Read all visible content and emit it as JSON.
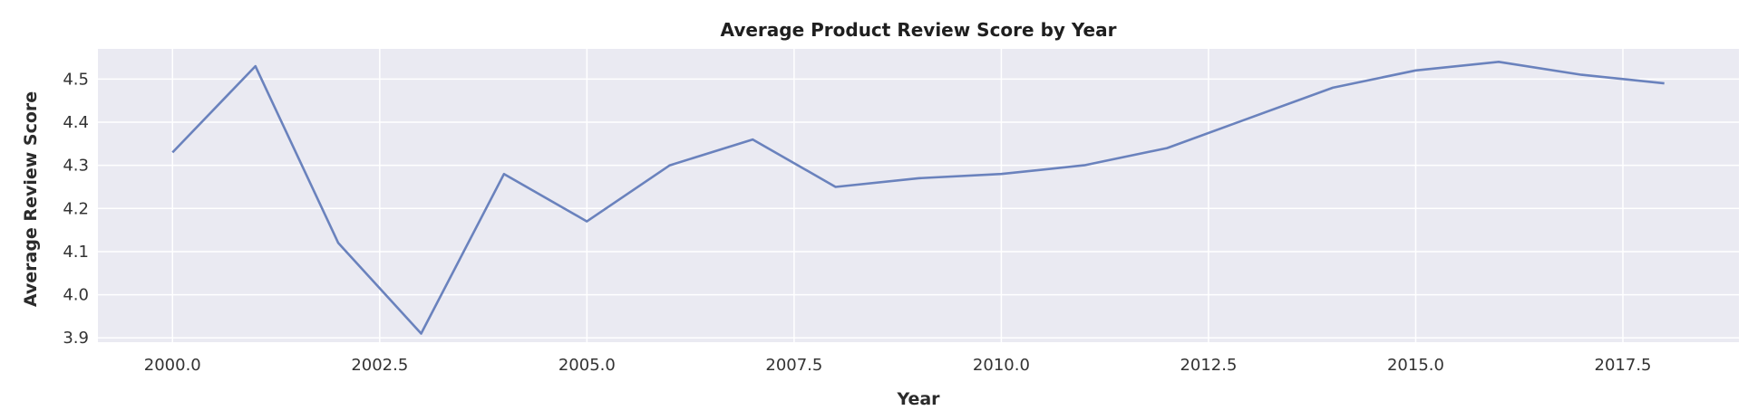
{
  "chart_data": {
    "type": "line",
    "title": "Average Product Review Score by Year",
    "xlabel": "Year",
    "ylabel": "Average Review Score",
    "xlim": [
      1999.1,
      2018.9
    ],
    "ylim": [
      3.89,
      4.57
    ],
    "xticks": [
      2000.0,
      2002.5,
      2005.0,
      2007.5,
      2010.0,
      2012.5,
      2015.0,
      2017.5
    ],
    "xtick_labels": [
      "2000.0",
      "2002.5",
      "2005.0",
      "2007.5",
      "2010.0",
      "2012.5",
      "2015.0",
      "2017.5"
    ],
    "yticks": [
      3.9,
      4.0,
      4.1,
      4.2,
      4.3,
      4.4,
      4.5
    ],
    "ytick_labels": [
      "3.9",
      "4.0",
      "4.1",
      "4.2",
      "4.3",
      "4.4",
      "4.5"
    ],
    "grid": true,
    "background": "#eaeaf2",
    "grid_color": "#ffffff",
    "line_color": "#6a82bd",
    "series": [
      {
        "x": [
          2000,
          2001,
          2002,
          2003,
          2004,
          2005,
          2006,
          2007,
          2008,
          2009,
          2010,
          2011,
          2012,
          2013,
          2014,
          2015,
          2016,
          2017,
          2018
        ],
        "values": [
          4.33,
          4.53,
          4.12,
          3.91,
          4.28,
          4.17,
          4.3,
          4.36,
          4.25,
          4.27,
          4.28,
          4.3,
          4.34,
          4.41,
          4.48,
          4.52,
          4.54,
          4.51,
          4.49
        ]
      }
    ]
  }
}
